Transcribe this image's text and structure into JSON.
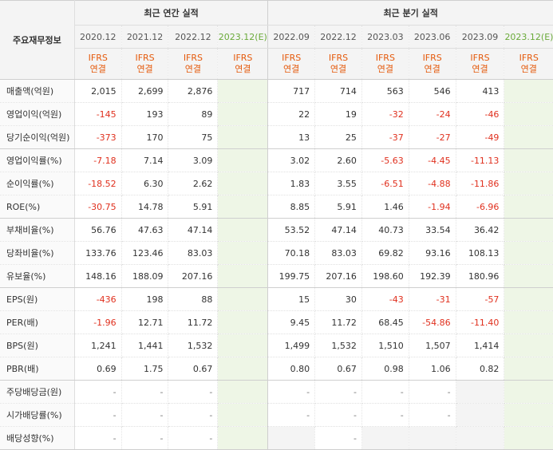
{
  "corner_label": "주요재무정보",
  "annual_header": "최근 연간 실적",
  "quarter_header": "최근 분기 실적",
  "annual_periods": [
    "2020.12",
    "2021.12",
    "2022.12",
    "2023.12(E)"
  ],
  "quarter_periods": [
    "2022.09",
    "2022.12",
    "2023.03",
    "2023.06",
    "2023.09",
    "2023.12(E)"
  ],
  "ifrs_line1": "IFRS",
  "ifrs_line2": "연결",
  "rows": [
    {
      "label": "매출액(억원)",
      "values": [
        "2,015",
        "2,699",
        "2,876",
        "",
        "717",
        "714",
        "563",
        "546",
        "413",
        ""
      ]
    },
    {
      "label": "영업이익(억원)",
      "values": [
        "-145",
        "193",
        "89",
        "",
        "22",
        "19",
        "-32",
        "-24",
        "-46",
        ""
      ]
    },
    {
      "label": "당기순이익(억원)",
      "values": [
        "-373",
        "170",
        "75",
        "",
        "13",
        "25",
        "-37",
        "-27",
        "-49",
        ""
      ]
    },
    {
      "label": "영업이익률(%)",
      "values": [
        "-7.18",
        "7.14",
        "3.09",
        "",
        "3.02",
        "2.60",
        "-5.63",
        "-4.45",
        "-11.13",
        ""
      ]
    },
    {
      "label": "순이익률(%)",
      "values": [
        "-18.52",
        "6.30",
        "2.62",
        "",
        "1.83",
        "3.55",
        "-6.51",
        "-4.88",
        "-11.86",
        ""
      ]
    },
    {
      "label": "ROE(%)",
      "values": [
        "-30.75",
        "14.78",
        "5.91",
        "",
        "8.85",
        "5.91",
        "1.46",
        "-1.94",
        "-6.96",
        ""
      ]
    },
    {
      "label": "부채비율(%)",
      "values": [
        "56.76",
        "47.63",
        "47.14",
        "",
        "53.52",
        "47.14",
        "40.73",
        "33.54",
        "36.42",
        ""
      ]
    },
    {
      "label": "당좌비율(%)",
      "values": [
        "133.76",
        "123.46",
        "83.03",
        "",
        "70.18",
        "83.03",
        "69.82",
        "93.16",
        "108.13",
        ""
      ]
    },
    {
      "label": "유보율(%)",
      "values": [
        "148.16",
        "188.09",
        "207.16",
        "",
        "199.75",
        "207.16",
        "198.60",
        "192.39",
        "180.96",
        ""
      ]
    },
    {
      "label": "EPS(원)",
      "values": [
        "-436",
        "198",
        "88",
        "",
        "15",
        "30",
        "-43",
        "-31",
        "-57",
        ""
      ]
    },
    {
      "label": "PER(배)",
      "values": [
        "-1.96",
        "12.71",
        "11.72",
        "",
        "9.45",
        "11.72",
        "68.45",
        "-54.86",
        "-11.40",
        ""
      ]
    },
    {
      "label": "BPS(원)",
      "values": [
        "1,241",
        "1,441",
        "1,532",
        "",
        "1,499",
        "1,532",
        "1,510",
        "1,507",
        "1,414",
        ""
      ]
    },
    {
      "label": "PBR(배)",
      "values": [
        "0.69",
        "1.75",
        "0.67",
        "",
        "0.80",
        "0.67",
        "0.98",
        "1.06",
        "0.82",
        ""
      ]
    },
    {
      "label": "주당배당금(원)",
      "values": [
        "-",
        "-",
        "-",
        "",
        "-",
        "-",
        "-",
        "-",
        "",
        ""
      ]
    },
    {
      "label": "시가배당률(%)",
      "values": [
        "-",
        "-",
        "-",
        "",
        "-",
        "-",
        "-",
        "-",
        "",
        ""
      ]
    },
    {
      "label": "배당성향(%)",
      "values": [
        "-",
        "-",
        "-",
        "",
        "",
        "-",
        "",
        "",
        "",
        ""
      ]
    }
  ]
}
